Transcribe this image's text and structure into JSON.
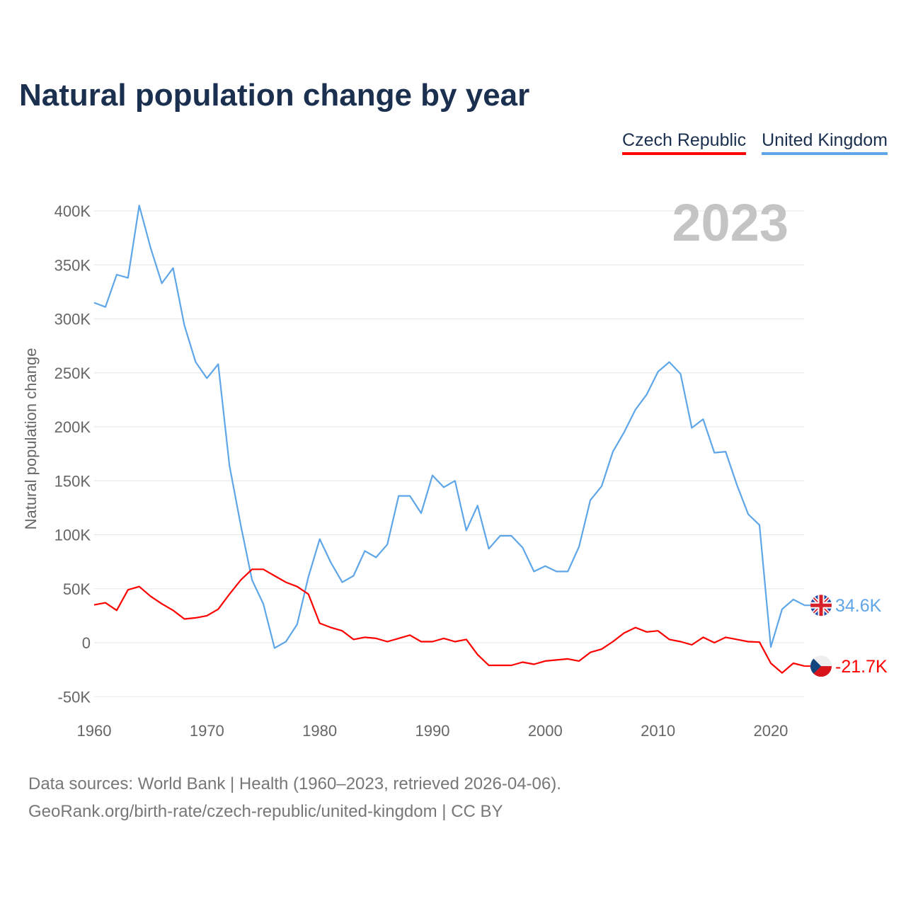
{
  "chart_data": {
    "type": "line",
    "title": "Natural population change by year",
    "ylabel": "Natural population change",
    "xlabel": "",
    "year_watermark": "2023",
    "x": [
      1960,
      1961,
      1962,
      1963,
      1964,
      1965,
      1966,
      1967,
      1968,
      1969,
      1970,
      1971,
      1972,
      1973,
      1974,
      1975,
      1976,
      1977,
      1978,
      1979,
      1980,
      1981,
      1982,
      1983,
      1984,
      1985,
      1986,
      1987,
      1988,
      1989,
      1990,
      1991,
      1992,
      1993,
      1994,
      1995,
      1996,
      1997,
      1998,
      1999,
      2000,
      2001,
      2002,
      2003,
      2004,
      2005,
      2006,
      2007,
      2008,
      2009,
      2010,
      2011,
      2012,
      2013,
      2014,
      2015,
      2016,
      2017,
      2018,
      2019,
      2020,
      2021,
      2022,
      2023
    ],
    "series": [
      {
        "name": "Czech Republic",
        "color": "#ff0000",
        "end_label": "-21.7K",
        "values": [
          35,
          37,
          30,
          49,
          52,
          43,
          36,
          30,
          22,
          23,
          25,
          31,
          45,
          58,
          68,
          68,
          62,
          56,
          52,
          45,
          18,
          14,
          11,
          3,
          5,
          4,
          1,
          4,
          7,
          1,
          1,
          4,
          1,
          3,
          -11,
          -21,
          -21,
          -21,
          -18,
          -20,
          -17,
          -16,
          -15,
          -17,
          -9,
          -6,
          1,
          9,
          14,
          10,
          11,
          3,
          1,
          -2,
          5,
          0,
          5,
          3,
          1,
          0.5,
          -19,
          -28,
          -19,
          -21.7
        ]
      },
      {
        "name": "United Kingdom",
        "color": "#5ea6e8",
        "end_label": "34.6K",
        "values": [
          315,
          311,
          341,
          338,
          405,
          366,
          333,
          347,
          294,
          260,
          245,
          258,
          164,
          109,
          58,
          36,
          -5,
          1,
          17,
          61,
          96,
          74,
          56,
          62,
          85,
          79,
          91,
          136,
          136,
          120,
          155,
          144,
          150,
          104,
          127,
          87,
          99,
          99,
          88,
          66,
          71,
          66,
          66,
          89,
          132,
          145,
          177,
          195,
          216,
          230,
          251,
          260,
          249,
          199,
          207,
          176,
          177,
          146,
          119,
          109,
          -4,
          31,
          40,
          34.6
        ]
      }
    ],
    "value_unit": "thousands",
    "ylim": [
      -50,
      400
    ],
    "xlim": [
      1960,
      2023
    ],
    "yticks": [
      -50,
      0,
      50,
      100,
      150,
      200,
      250,
      300,
      350,
      400
    ],
    "ytick_labels": [
      "-50K",
      "0",
      "50K",
      "100K",
      "150K",
      "200K",
      "250K",
      "300K",
      "350K",
      "400K"
    ],
    "xticks": [
      1960,
      1970,
      1980,
      1990,
      2000,
      2010,
      2020
    ],
    "xtick_labels": [
      "1960",
      "1970",
      "1980",
      "1990",
      "2000",
      "2010",
      "2020"
    ],
    "grid": true,
    "legend_placement": "top-right"
  },
  "footer": {
    "line1": "Data sources: World Bank | Health (1960–2023, retrieved 2026-04-06).",
    "line2": "GeoRank.org/birth-rate/czech-republic/united-kingdom | CC BY"
  }
}
